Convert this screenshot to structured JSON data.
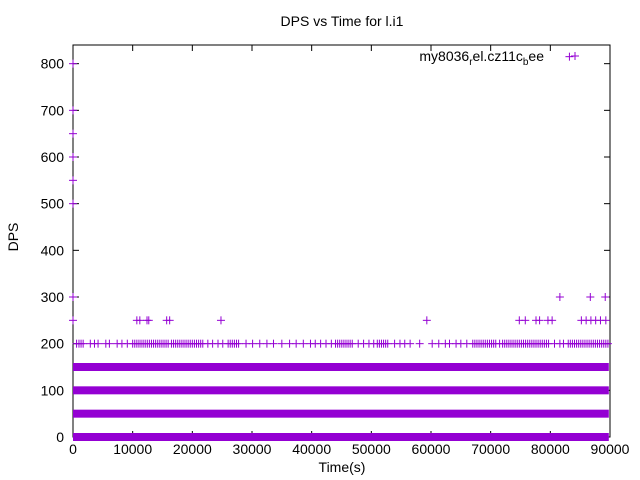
{
  "chart_data": {
    "type": "scatter",
    "title": "DPS vs Time for l.i1",
    "xlabel": "Time(s)",
    "ylabel": "DPS",
    "xlim": [
      0,
      90000
    ],
    "ylim": [
      0,
      840
    ],
    "xticks": [
      0,
      10000,
      20000,
      30000,
      40000,
      50000,
      60000,
      70000,
      80000,
      90000
    ],
    "yticks": [
      0,
      100,
      200,
      300,
      400,
      500,
      600,
      700,
      800
    ],
    "grid": false,
    "legend_position": "top-right",
    "series": [
      {
        "name": "my8036_rel.cz11c_bee",
        "legend_main": "my8036",
        "legend_sub1": "r",
        "legend_mid": "el.cz11c",
        "legend_sub2": "b",
        "legend_end": "ee",
        "color": "#9400D3",
        "marker": "plus",
        "bands": [
          {
            "y": 0,
            "x_start": 0,
            "x_end": 89800
          },
          {
            "y": 50,
            "x_start": 0,
            "x_end": 89800
          },
          {
            "y": 100,
            "x_start": 0,
            "x_end": 89800
          },
          {
            "y": 150,
            "x_start": 0,
            "x_end": 89800
          }
        ],
        "points": [
          {
            "x": 0,
            "y": 800
          },
          {
            "x": 0,
            "y": 700
          },
          {
            "x": 0,
            "y": 650
          },
          {
            "x": 0,
            "y": 600
          },
          {
            "x": 0,
            "y": 550
          },
          {
            "x": 0,
            "y": 500
          },
          {
            "x": 0,
            "y": 300
          },
          {
            "x": 0,
            "y": 250
          },
          {
            "x": 10700,
            "y": 250
          },
          {
            "x": 11200,
            "y": 250
          },
          {
            "x": 12400,
            "y": 250
          },
          {
            "x": 12700,
            "y": 250
          },
          {
            "x": 15700,
            "y": 250
          },
          {
            "x": 16200,
            "y": 250
          },
          {
            "x": 24800,
            "y": 250
          },
          {
            "x": 59300,
            "y": 250
          },
          {
            "x": 74800,
            "y": 250
          },
          {
            "x": 75800,
            "y": 250
          },
          {
            "x": 77600,
            "y": 250
          },
          {
            "x": 78200,
            "y": 250
          },
          {
            "x": 79600,
            "y": 250
          },
          {
            "x": 80300,
            "y": 250
          },
          {
            "x": 85200,
            "y": 250
          },
          {
            "x": 86000,
            "y": 250
          },
          {
            "x": 86800,
            "y": 250
          },
          {
            "x": 87600,
            "y": 250
          },
          {
            "x": 88400,
            "y": 250
          },
          {
            "x": 89300,
            "y": 250
          },
          {
            "x": 81600,
            "y": 300
          },
          {
            "x": 86700,
            "y": 300
          },
          {
            "x": 89200,
            "y": 300
          },
          {
            "x": 83200,
            "y": 815
          }
        ],
        "dense_200_ranges": [
          [
            1000,
            2000
          ],
          [
            10000,
            16000
          ],
          [
            16500,
            22000
          ],
          [
            26000,
            28000
          ],
          [
            44000,
            47000
          ],
          [
            51000,
            53000
          ],
          [
            67000,
            71000
          ],
          [
            72000,
            80000
          ],
          [
            83000,
            89800
          ]
        ],
        "sparse_200_points": [
          600,
          2900,
          3600,
          4200,
          5500,
          6100,
          7400,
          8200,
          9100,
          22600,
          23400,
          24300,
          25100,
          29000,
          30100,
          31300,
          32500,
          33600,
          35000,
          36300,
          37400,
          38600,
          39800,
          40600,
          41500,
          42400,
          43300,
          47800,
          48700,
          49600,
          50400,
          53900,
          54800,
          55600,
          56500,
          58100,
          60200,
          61300,
          62400,
          63100,
          64200,
          65000,
          66000,
          71500,
          80700,
          81600,
          82200
        ]
      }
    ]
  }
}
